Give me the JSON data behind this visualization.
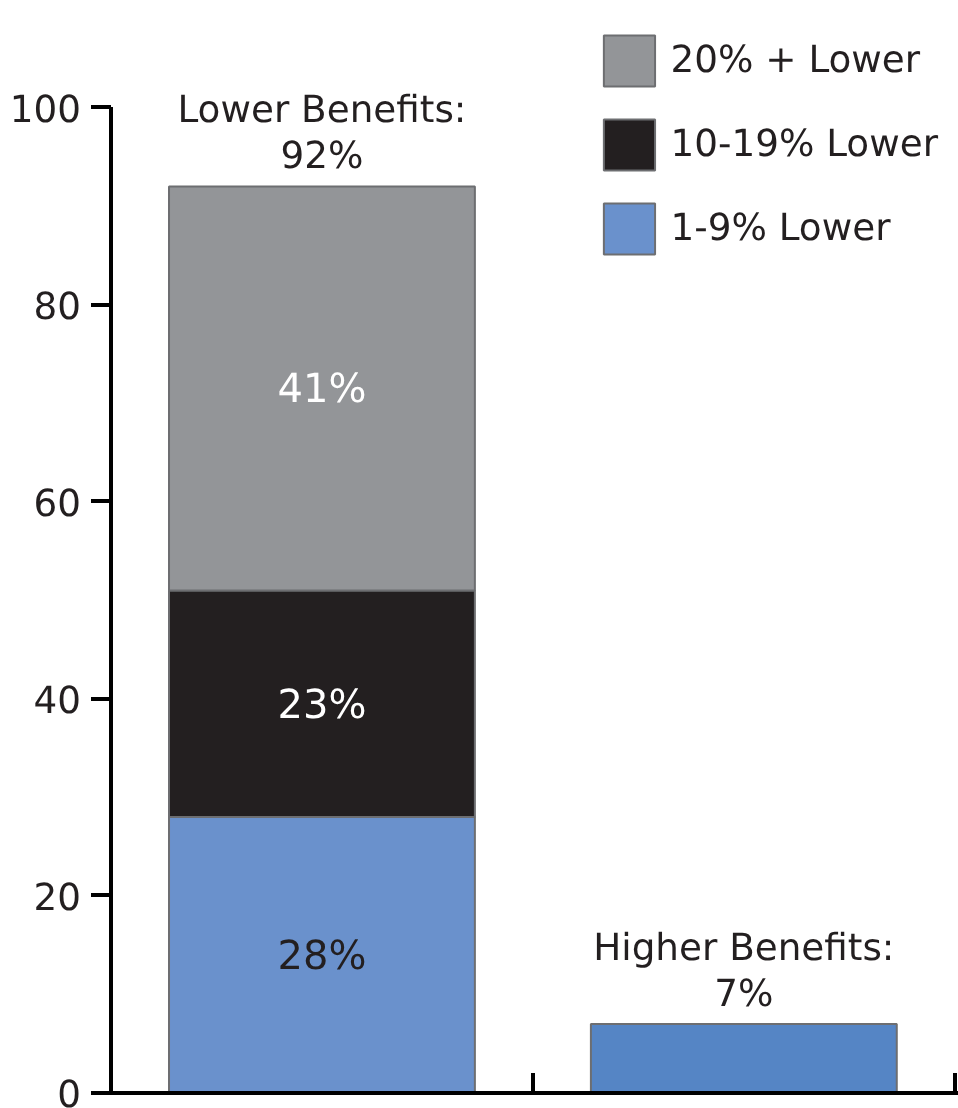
{
  "chart_data": {
    "type": "bar",
    "stacked": true,
    "categories": [
      null,
      null
    ],
    "series": [
      {
        "name": "1-9% Lower",
        "color": "#6a91cc",
        "values": [
          28,
          null
        ],
        "value_labels": [
          "28%",
          null
        ]
      },
      {
        "name": "10-19% Lower",
        "color": "#231f20",
        "values": [
          23,
          null
        ],
        "value_labels": [
          "23%",
          null
        ]
      },
      {
        "name": "20% + Lower",
        "color": "#939598",
        "values": [
          41,
          null
        ],
        "value_labels": [
          "41%",
          null
        ]
      },
      {
        "color": "#5585c5",
        "values": [
          null,
          7
        ]
      }
    ],
    "ylim": [
      0,
      100
    ],
    "yticks": [
      0,
      20,
      40,
      60,
      80,
      100
    ],
    "annotations": [
      {
        "text": "Lower Benefits:\n92%",
        "y": 92
      },
      {
        "text": "Higher Benefits:\n7%",
        "y": 7
      }
    ],
    "legend": "top right",
    "grid": false
  }
}
